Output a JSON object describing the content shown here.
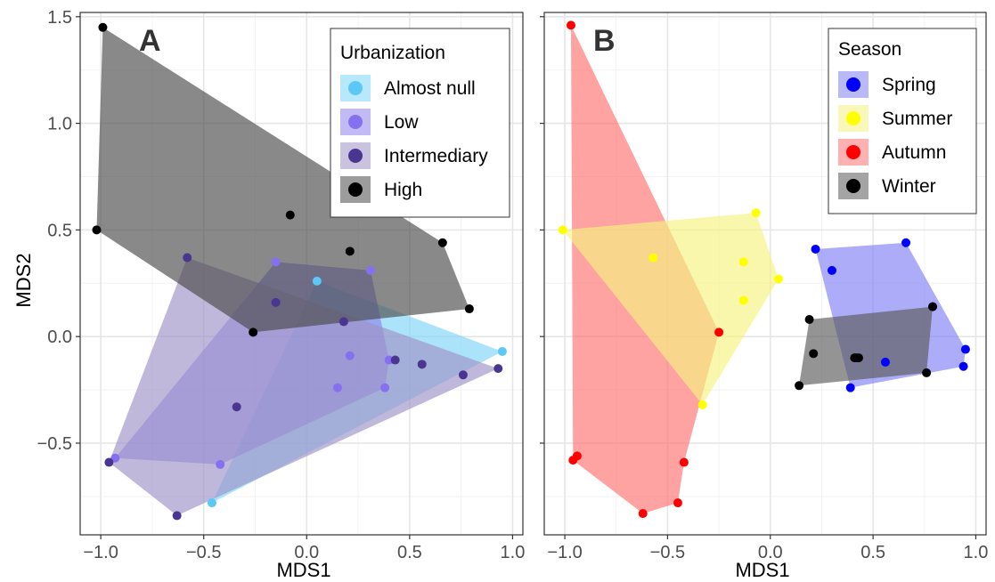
{
  "chart_data": [
    {
      "type": "scatter",
      "panel_tag": "A",
      "xlabel": "MDS1",
      "ylabel": "MDS2",
      "xlim": [
        -1.1,
        1.05
      ],
      "ylim": [
        -0.93,
        1.52
      ],
      "xticks": [
        -1.0,
        -0.5,
        0.0,
        0.5,
        1.0
      ],
      "xtick_labels": [
        "−1.0",
        "−0.5",
        "0.0",
        "0.5",
        "1.0"
      ],
      "yticks": [
        -0.5,
        0.0,
        0.5,
        1.0,
        1.5
      ],
      "ytick_labels": [
        "−0.5",
        "0.0",
        "0.5",
        "1.0",
        "1.5"
      ],
      "grid": true,
      "legend_position": "top-right",
      "legend": {
        "title": "Urbanization",
        "items": [
          {
            "label": "Almost null",
            "color": "#5BC8F5"
          },
          {
            "label": "Low",
            "color": "#8571F0"
          },
          {
            "label": "Intermediary",
            "color": "#4A3691"
          },
          {
            "label": "High",
            "color": "#000000"
          }
        ]
      },
      "series": [
        {
          "name": "Almost null",
          "color": "#5BC8F5",
          "fill": "#7ED6F7",
          "points": [
            [
              -0.46,
              -0.78
            ],
            [
              0.05,
              0.26
            ],
            [
              0.95,
              -0.07
            ]
          ],
          "hull": [
            [
              -0.46,
              -0.78
            ],
            [
              0.05,
              0.26
            ],
            [
              0.95,
              -0.07
            ]
          ]
        },
        {
          "name": "Low",
          "color": "#8571F0",
          "fill": "#8E82EC",
          "points": [
            [
              -0.93,
              -0.57
            ],
            [
              -0.42,
              -0.6
            ],
            [
              -0.15,
              0.35
            ],
            [
              0.31,
              0.31
            ],
            [
              0.38,
              -0.24
            ],
            [
              0.15,
              -0.24
            ],
            [
              0.21,
              -0.09
            ],
            [
              0.4,
              -0.11
            ]
          ],
          "hull": [
            [
              -0.93,
              -0.57
            ],
            [
              -0.42,
              -0.6
            ],
            [
              0.38,
              -0.24
            ],
            [
              0.4,
              -0.11
            ],
            [
              0.31,
              0.31
            ],
            [
              -0.15,
              0.35
            ]
          ]
        },
        {
          "name": "Intermediary",
          "color": "#4A3691",
          "fill": "#9E92C6",
          "points": [
            [
              -0.58,
              0.37
            ],
            [
              -0.15,
              0.16
            ],
            [
              0.18,
              0.07
            ],
            [
              -0.34,
              -0.33
            ],
            [
              -0.63,
              -0.84
            ],
            [
              -0.96,
              -0.59
            ],
            [
              0.43,
              -0.11
            ],
            [
              0.56,
              -0.13
            ],
            [
              0.76,
              -0.18
            ],
            [
              0.93,
              -0.15
            ]
          ],
          "hull": [
            [
              -0.96,
              -0.59
            ],
            [
              -0.63,
              -0.84
            ],
            [
              0.93,
              -0.15
            ],
            [
              -0.58,
              0.37
            ]
          ]
        },
        {
          "name": "High",
          "color": "#000000",
          "fill": "#4A4A4A",
          "points": [
            [
              -0.99,
              1.45
            ],
            [
              -1.02,
              0.5
            ],
            [
              -0.08,
              0.57
            ],
            [
              0.21,
              0.4
            ],
            [
              0.66,
              0.44
            ],
            [
              0.79,
              0.13
            ],
            [
              -0.26,
              0.02
            ]
          ],
          "hull": [
            [
              -0.99,
              1.45
            ],
            [
              -1.02,
              0.5
            ],
            [
              -0.26,
              0.02
            ],
            [
              0.79,
              0.13
            ],
            [
              0.66,
              0.44
            ]
          ]
        }
      ]
    },
    {
      "type": "scatter",
      "panel_tag": "B",
      "xlabel": "MDS1",
      "ylabel": "",
      "xlim": [
        -1.1,
        1.05
      ],
      "ylim": [
        -0.93,
        1.52
      ],
      "xticks": [
        -1.0,
        -0.5,
        0.0,
        0.5,
        1.0
      ],
      "xtick_labels": [
        "−1.0",
        "−0.5",
        "0.0",
        "0.5",
        "1.0"
      ],
      "yticks": [
        -0.5,
        0.0,
        0.5,
        1.0,
        1.5
      ],
      "ytick_labels": [],
      "grid": true,
      "legend_position": "top-right",
      "legend": {
        "title": "Season",
        "items": [
          {
            "label": "Spring",
            "color": "#0000FF"
          },
          {
            "label": "Summer",
            "color": "#FFFF00"
          },
          {
            "label": "Autumn",
            "color": "#FF0000"
          },
          {
            "label": "Winter",
            "color": "#000000"
          }
        ]
      },
      "series": [
        {
          "name": "Autumn",
          "color": "#FF0000",
          "fill": "#FF7070",
          "points": [
            [
              -0.97,
              1.46
            ],
            [
              -0.96,
              -0.58
            ],
            [
              -0.94,
              -0.56
            ],
            [
              -0.62,
              -0.83
            ],
            [
              -0.45,
              -0.78
            ],
            [
              -0.42,
              -0.59
            ],
            [
              -0.25,
              0.02
            ]
          ],
          "hull": [
            [
              -0.97,
              1.46
            ],
            [
              -0.96,
              -0.58
            ],
            [
              -0.62,
              -0.83
            ],
            [
              -0.45,
              -0.78
            ],
            [
              -0.42,
              -0.59
            ],
            [
              -0.25,
              0.02
            ]
          ]
        },
        {
          "name": "Summer",
          "color": "#FFFF00",
          "fill": "#F4F280",
          "points": [
            [
              -1.01,
              0.5
            ],
            [
              -0.57,
              0.37
            ],
            [
              -0.07,
              0.58
            ],
            [
              -0.13,
              0.35
            ],
            [
              -0.13,
              0.17
            ],
            [
              0.04,
              0.27
            ],
            [
              -0.33,
              -0.32
            ]
          ],
          "hull": [
            [
              -1.01,
              0.5
            ],
            [
              -0.33,
              -0.32
            ],
            [
              0.04,
              0.27
            ],
            [
              -0.07,
              0.58
            ]
          ]
        },
        {
          "name": "Spring",
          "color": "#0000FF",
          "fill": "#8080F4",
          "points": [
            [
              0.22,
              0.41
            ],
            [
              0.3,
              0.31
            ],
            [
              0.66,
              0.44
            ],
            [
              0.79,
              0.14
            ],
            [
              0.95,
              -0.06
            ],
            [
              0.94,
              -0.14
            ],
            [
              0.39,
              -0.24
            ],
            [
              0.56,
              -0.12
            ],
            [
              0.42,
              -0.1
            ]
          ],
          "hull": [
            [
              0.22,
              0.41
            ],
            [
              0.39,
              -0.24
            ],
            [
              0.94,
              -0.14
            ],
            [
              0.95,
              -0.06
            ],
            [
              0.66,
              0.44
            ]
          ]
        },
        {
          "name": "Winter",
          "color": "#000000",
          "fill": "#5A5A5A",
          "points": [
            [
              0.19,
              0.08
            ],
            [
              0.21,
              -0.08
            ],
            [
              0.14,
              -0.23
            ],
            [
              0.41,
              -0.1
            ],
            [
              0.43,
              -0.1
            ],
            [
              0.76,
              -0.17
            ],
            [
              0.79,
              0.14
            ]
          ],
          "hull": [
            [
              0.19,
              0.08
            ],
            [
              0.14,
              -0.23
            ],
            [
              0.76,
              -0.17
            ],
            [
              0.79,
              0.14
            ]
          ]
        }
      ]
    }
  ]
}
